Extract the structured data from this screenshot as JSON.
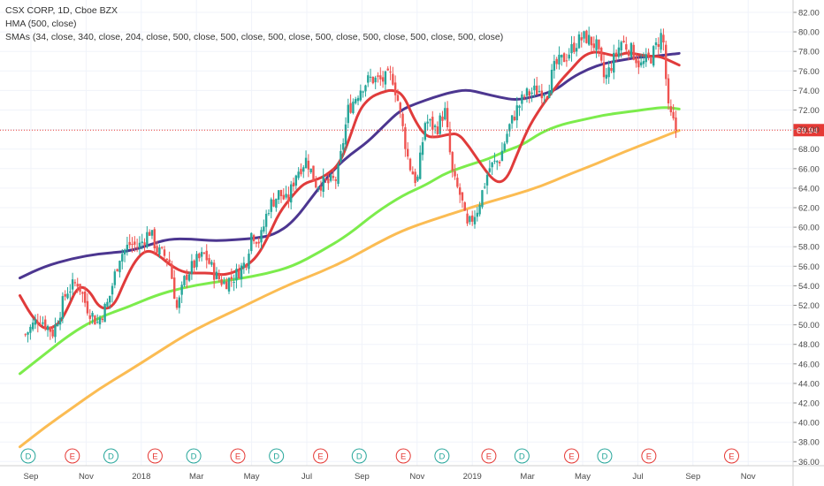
{
  "chart_data": {
    "type": "line",
    "title": "CSX CORP, 1D, Cboe BZX",
    "indicators": [
      "HMA (500, close)",
      "SMAs (34, close, 340, close, 204, close, 500, close, 500, close, 500, close, 500, close, 500, close, 500, close, 500, close)"
    ],
    "last_price": "69.94",
    "ylim": [
      36,
      82
    ],
    "y_ticks": [
      "36.00",
      "38.00",
      "40.00",
      "42.00",
      "44.00",
      "46.00",
      "48.00",
      "50.00",
      "52.00",
      "54.00",
      "56.00",
      "58.00",
      "60.00",
      "62.00",
      "64.00",
      "66.00",
      "68.00",
      "70.00",
      "72.00",
      "74.00",
      "76.00",
      "78.00",
      "80.00",
      "82.00"
    ],
    "x_ticks": [
      {
        "label": "Sep",
        "t": 0
      },
      {
        "label": "Nov",
        "t": 2
      },
      {
        "label": "2018",
        "t": 4
      },
      {
        "label": "Mar",
        "t": 6
      },
      {
        "label": "May",
        "t": 8
      },
      {
        "label": "Jul",
        "t": 10
      },
      {
        "label": "Sep",
        "t": 12
      },
      {
        "label": "Nov",
        "t": 14
      },
      {
        "label": "2019",
        "t": 16
      },
      {
        "label": "Mar",
        "t": 18
      },
      {
        "label": "May",
        "t": 20
      },
      {
        "label": "Jul",
        "t": 22
      },
      {
        "label": "Sep",
        "t": 24
      },
      {
        "label": "Nov",
        "t": 26
      }
    ],
    "event_markers": [
      {
        "label": "D",
        "t": -0.1
      },
      {
        "label": "E",
        "t": 1.5
      },
      {
        "label": "D",
        "t": 2.9
      },
      {
        "label": "E",
        "t": 4.5
      },
      {
        "label": "D",
        "t": 5.9
      },
      {
        "label": "E",
        "t": 7.5
      },
      {
        "label": "D",
        "t": 8.9
      },
      {
        "label": "E",
        "t": 10.5
      },
      {
        "label": "D",
        "t": 11.9
      },
      {
        "label": "E",
        "t": 13.5
      },
      {
        "label": "D",
        "t": 14.9
      },
      {
        "label": "E",
        "t": 16.6
      },
      {
        "label": "D",
        "t": 17.8
      },
      {
        "label": "E",
        "t": 19.6
      },
      {
        "label": "D",
        "t": 20.8
      },
      {
        "label": "E",
        "t": 22.4
      },
      {
        "label": "E",
        "t": 25.4
      }
    ],
    "price_path": [
      [
        -0.2,
        49.0
      ],
      [
        0.3,
        50.8
      ],
      [
        0.8,
        49.2
      ],
      [
        1.3,
        53.5
      ],
      [
        1.7,
        54.4
      ],
      [
        2.0,
        52.0
      ],
      [
        2.4,
        50.2
      ],
      [
        2.8,
        52.3
      ],
      [
        3.2,
        57.0
      ],
      [
        3.6,
        58.3
      ],
      [
        3.9,
        58.0
      ],
      [
        4.3,
        59.6
      ],
      [
        4.6,
        57.5
      ],
      [
        5.0,
        56.8
      ],
      [
        5.3,
        51.5
      ],
      [
        5.6,
        55.0
      ],
      [
        6.0,
        56.5
      ],
      [
        6.3,
        57.2
      ],
      [
        6.7,
        55.0
      ],
      [
        7.0,
        54.3
      ],
      [
        7.4,
        55.0
      ],
      [
        7.8,
        56.5
      ],
      [
        8.0,
        59.5
      ],
      [
        8.3,
        58.5
      ],
      [
        8.6,
        62.0
      ],
      [
        9.0,
        63.5
      ],
      [
        9.3,
        62.5
      ],
      [
        9.6,
        65.5
      ],
      [
        10.0,
        67.0
      ],
      [
        10.3,
        64.5
      ],
      [
        10.8,
        64.5
      ],
      [
        11.1,
        65.0
      ],
      [
        11.5,
        72.0
      ],
      [
        12.0,
        74.5
      ],
      [
        12.3,
        75.2
      ],
      [
        12.7,
        75.0
      ],
      [
        13.1,
        75.5
      ],
      [
        13.3,
        73.0
      ],
      [
        13.7,
        66.5
      ],
      [
        14.0,
        64.5
      ],
      [
        14.3,
        71.0
      ],
      [
        14.7,
        70.0
      ],
      [
        15.0,
        72.0
      ],
      [
        15.3,
        65.0
      ],
      [
        15.6,
        63.0
      ],
      [
        15.8,
        59.8
      ],
      [
        16.2,
        62.0
      ],
      [
        16.6,
        66.0
      ],
      [
        17.0,
        67.0
      ],
      [
        17.3,
        70.0
      ],
      [
        17.6,
        72.0
      ],
      [
        17.9,
        73.5
      ],
      [
        18.3,
        74.0
      ],
      [
        18.7,
        74.0
      ],
      [
        19.0,
        76.5
      ],
      [
        19.4,
        77.5
      ],
      [
        19.8,
        79.0
      ],
      [
        20.1,
        79.5
      ],
      [
        20.5,
        78.5
      ],
      [
        20.8,
        75.0
      ],
      [
        21.1,
        77.0
      ],
      [
        21.4,
        79.0
      ],
      [
        21.8,
        78.0
      ],
      [
        22.1,
        76.5
      ],
      [
        22.5,
        77.5
      ],
      [
        22.9,
        80.0
      ],
      [
        23.1,
        72.0
      ],
      [
        23.4,
        69.9
      ]
    ],
    "series": [
      {
        "color": "#e03b3b",
        "points": [
          [
            -0.4,
            53.0
          ],
          [
            0.0,
            51.0
          ],
          [
            0.5,
            49.4
          ],
          [
            1.0,
            50.0
          ],
          [
            1.3,
            51.5
          ],
          [
            1.7,
            54.0
          ],
          [
            2.1,
            53.6
          ],
          [
            2.5,
            51.6
          ],
          [
            3.0,
            51.8
          ],
          [
            3.4,
            54.5
          ],
          [
            3.8,
            56.7
          ],
          [
            4.2,
            57.7
          ],
          [
            4.6,
            57.2
          ],
          [
            5.1,
            56.0
          ],
          [
            5.6,
            55.3
          ],
          [
            6.1,
            55.3
          ],
          [
            6.5,
            55.3
          ],
          [
            6.9,
            55.1
          ],
          [
            7.3,
            55.3
          ],
          [
            7.8,
            56.0
          ],
          [
            8.2,
            57.0
          ],
          [
            8.6,
            59.0
          ],
          [
            9.0,
            61.5
          ],
          [
            9.5,
            63.3
          ],
          [
            9.9,
            64.5
          ],
          [
            10.3,
            64.8
          ],
          [
            10.7,
            65.3
          ],
          [
            11.2,
            66.5
          ],
          [
            11.6,
            69.5
          ],
          [
            11.9,
            72.0
          ],
          [
            12.3,
            73.3
          ],
          [
            12.7,
            73.8
          ],
          [
            13.1,
            74.1
          ],
          [
            13.5,
            73.6
          ],
          [
            13.9,
            71.0
          ],
          [
            14.3,
            69.3
          ],
          [
            14.7,
            69.2
          ],
          [
            15.1,
            69.5
          ],
          [
            15.5,
            69.6
          ],
          [
            15.9,
            68.2
          ],
          [
            16.3,
            66.5
          ],
          [
            16.7,
            65.0
          ],
          [
            17.0,
            64.5
          ],
          [
            17.3,
            65.2
          ],
          [
            17.6,
            67.3
          ],
          [
            18.0,
            70.0
          ],
          [
            18.4,
            71.9
          ],
          [
            18.8,
            73.5
          ],
          [
            19.2,
            75.0
          ],
          [
            19.6,
            76.2
          ],
          [
            20.0,
            77.5
          ],
          [
            20.4,
            78.0
          ],
          [
            20.8,
            77.8
          ],
          [
            21.2,
            77.5
          ],
          [
            21.6,
            77.9
          ],
          [
            22.0,
            77.7
          ],
          [
            22.4,
            77.5
          ],
          [
            22.8,
            77.5
          ],
          [
            23.2,
            77.0
          ],
          [
            23.5,
            76.6
          ]
        ]
      },
      {
        "color": "#4c3690",
        "points": [
          [
            -0.4,
            54.8
          ],
          [
            0.5,
            56.0
          ],
          [
            1.5,
            56.8
          ],
          [
            2.5,
            57.3
          ],
          [
            3.5,
            57.5
          ],
          [
            4.3,
            58.2
          ],
          [
            5.0,
            58.8
          ],
          [
            5.8,
            58.8
          ],
          [
            6.6,
            58.6
          ],
          [
            7.4,
            58.7
          ],
          [
            8.2,
            58.9
          ],
          [
            8.8,
            59.2
          ],
          [
            9.5,
            60.5
          ],
          [
            10.3,
            63.5
          ],
          [
            11.0,
            66.0
          ],
          [
            11.6,
            67.5
          ],
          [
            12.2,
            68.7
          ],
          [
            12.8,
            70.4
          ],
          [
            13.4,
            72.0
          ],
          [
            14.0,
            72.7
          ],
          [
            14.6,
            73.3
          ],
          [
            15.2,
            73.8
          ],
          [
            15.8,
            74.1
          ],
          [
            16.4,
            73.7
          ],
          [
            17.0,
            73.3
          ],
          [
            17.6,
            73.0
          ],
          [
            18.3,
            73.4
          ],
          [
            19.0,
            74.0
          ],
          [
            19.6,
            75.3
          ],
          [
            20.2,
            76.2
          ],
          [
            20.8,
            76.8
          ],
          [
            21.4,
            77.1
          ],
          [
            22.0,
            77.4
          ],
          [
            22.6,
            77.5
          ],
          [
            23.2,
            77.7
          ],
          [
            23.5,
            77.8
          ]
        ]
      },
      {
        "color": "#7cec4c",
        "points": [
          [
            -0.4,
            45.0
          ],
          [
            0.5,
            47.0
          ],
          [
            1.5,
            49.2
          ],
          [
            2.5,
            50.8
          ],
          [
            3.5,
            51.8
          ],
          [
            4.5,
            53.0
          ],
          [
            5.5,
            53.8
          ],
          [
            6.5,
            54.3
          ],
          [
            7.5,
            54.7
          ],
          [
            8.5,
            55.2
          ],
          [
            9.5,
            56.0
          ],
          [
            10.5,
            57.5
          ],
          [
            11.5,
            59.2
          ],
          [
            12.5,
            61.5
          ],
          [
            13.5,
            63.3
          ],
          [
            14.3,
            64.3
          ],
          [
            15.0,
            65.5
          ],
          [
            15.8,
            66.3
          ],
          [
            16.6,
            67.0
          ],
          [
            17.2,
            67.8
          ],
          [
            17.8,
            68.4
          ],
          [
            18.5,
            69.7
          ],
          [
            19.2,
            70.5
          ],
          [
            20.0,
            71.0
          ],
          [
            20.8,
            71.5
          ],
          [
            21.6,
            71.8
          ],
          [
            22.4,
            72.1
          ],
          [
            23.0,
            72.3
          ],
          [
            23.5,
            72.1
          ]
        ]
      },
      {
        "color": "#fbbc53",
        "points": [
          [
            -0.4,
            37.5
          ],
          [
            0.5,
            39.5
          ],
          [
            1.5,
            41.5
          ],
          [
            2.5,
            43.5
          ],
          [
            3.5,
            45.2
          ],
          [
            4.5,
            47.0
          ],
          [
            5.5,
            48.8
          ],
          [
            6.5,
            50.3
          ],
          [
            7.5,
            51.6
          ],
          [
            8.5,
            53.0
          ],
          [
            9.5,
            54.3
          ],
          [
            10.5,
            55.4
          ],
          [
            11.5,
            56.7
          ],
          [
            12.5,
            58.3
          ],
          [
            13.5,
            59.7
          ],
          [
            14.5,
            60.7
          ],
          [
            15.5,
            61.6
          ],
          [
            16.5,
            62.5
          ],
          [
            17.5,
            63.3
          ],
          [
            18.5,
            64.2
          ],
          [
            19.5,
            65.4
          ],
          [
            20.5,
            66.5
          ],
          [
            21.5,
            67.7
          ],
          [
            22.5,
            68.8
          ],
          [
            23.3,
            69.7
          ],
          [
            23.5,
            69.9
          ]
        ]
      }
    ]
  }
}
